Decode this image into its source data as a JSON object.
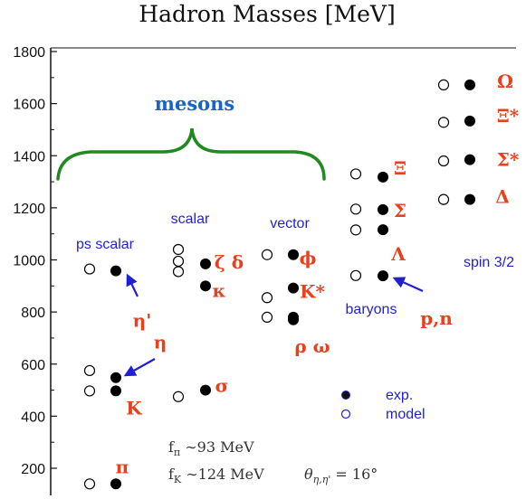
{
  "chart_data": {
    "type": "scatter",
    "title": "Hadron Masses [MeV]",
    "xlabel": "",
    "ylabel": "",
    "ylim": [
      120,
      1830
    ],
    "yticks": [
      200,
      400,
      600,
      800,
      1000,
      1200,
      1400,
      1600,
      1800
    ],
    "grid": false,
    "groups": [
      {
        "label": "ps scalar",
        "key": "ps_scalar"
      },
      {
        "label": "scalar",
        "key": "scalar"
      },
      {
        "label": "vector",
        "key": "vector"
      },
      {
        "label": "baryons",
        "key": "baryons"
      },
      {
        "label": "spin 3/2",
        "key": "spin32"
      }
    ],
    "meson_label": "mesons",
    "series": [
      {
        "name": "exp.",
        "marker": "filled",
        "points": [
          {
            "group": "ps_scalar",
            "y": 140,
            "label": "π"
          },
          {
            "group": "ps_scalar",
            "y": 497,
            "label": "K"
          },
          {
            "group": "ps_scalar",
            "y": 548,
            "label": "η"
          },
          {
            "group": "ps_scalar",
            "y": 958,
            "label": "η'"
          },
          {
            "group": "scalar",
            "y": 500,
            "label": "σ"
          },
          {
            "group": "scalar",
            "y": 900,
            "label": "κ"
          },
          {
            "group": "scalar",
            "y": 985,
            "label": "ζ δ"
          },
          {
            "group": "vector",
            "y": 770,
            "label": "ρ ω"
          },
          {
            "group": "vector",
            "y": 780,
            "label": ""
          },
          {
            "group": "vector",
            "y": 892,
            "label": "K*"
          },
          {
            "group": "vector",
            "y": 1020,
            "label": "ϕ"
          },
          {
            "group": "baryons",
            "y": 939,
            "label": "p,n"
          },
          {
            "group": "baryons",
            "y": 1116,
            "label": "Λ"
          },
          {
            "group": "baryons",
            "y": 1193,
            "label": "Σ"
          },
          {
            "group": "baryons",
            "y": 1318,
            "label": "Ξ"
          },
          {
            "group": "spin32",
            "y": 1232,
            "label": "Δ"
          },
          {
            "group": "spin32",
            "y": 1385,
            "label": "Σ*"
          },
          {
            "group": "spin32",
            "y": 1533,
            "label": "Ξ*"
          },
          {
            "group": "spin32",
            "y": 1672,
            "label": "Ω"
          }
        ]
      },
      {
        "name": "model",
        "marker": "open",
        "points": [
          {
            "group": "ps_scalar",
            "y": 140
          },
          {
            "group": "ps_scalar",
            "y": 497
          },
          {
            "group": "ps_scalar",
            "y": 575
          },
          {
            "group": "ps_scalar",
            "y": 965
          },
          {
            "group": "scalar",
            "y": 475
          },
          {
            "group": "scalar",
            "y": 955
          },
          {
            "group": "scalar",
            "y": 995
          },
          {
            "group": "scalar",
            "y": 1040
          },
          {
            "group": "vector",
            "y": 780
          },
          {
            "group": "vector",
            "y": 855
          },
          {
            "group": "vector",
            "y": 1020
          },
          {
            "group": "baryons",
            "y": 940
          },
          {
            "group": "baryons",
            "y": 1115
          },
          {
            "group": "baryons",
            "y": 1195
          },
          {
            "group": "baryons",
            "y": 1330
          },
          {
            "group": "spin32",
            "y": 1232
          },
          {
            "group": "spin32",
            "y": 1380
          },
          {
            "group": "spin32",
            "y": 1528
          },
          {
            "group": "spin32",
            "y": 1672
          }
        ]
      }
    ],
    "legend": {
      "placement": "bottom-right",
      "entries": [
        "exp.",
        "model"
      ]
    },
    "annotations": [
      {
        "text": "f",
        "sub": "π",
        "rest": " ∼93 MeV"
      },
      {
        "text": "f",
        "sub": "K",
        "rest": " ∼124 MeV"
      },
      {
        "text": "θ",
        "sub": "η,η'",
        "rest": " = 16°"
      }
    ]
  },
  "colors": {
    "exp_marker": "#000000",
    "model_marker": "#000000",
    "particle_label": "#e8401c",
    "group_label": "#1f1fd6",
    "mesons_label": "#1a63c9",
    "brace": "#1f8a1f",
    "arrow": "#1f1fd6"
  }
}
